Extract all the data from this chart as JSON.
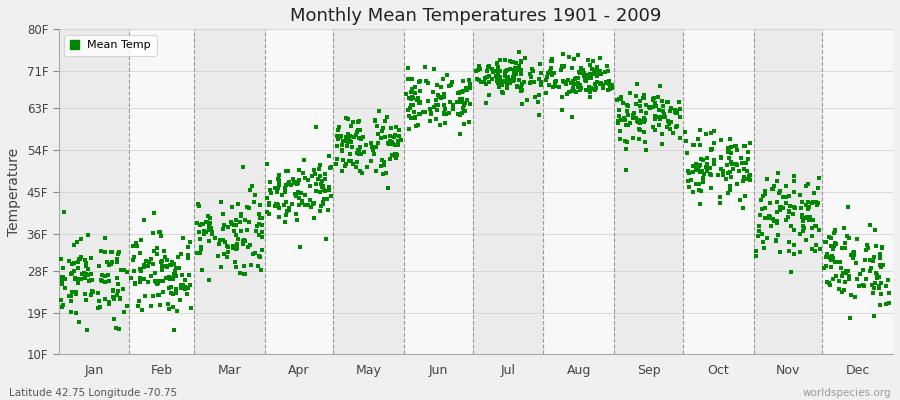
{
  "title": "Monthly Mean Temperatures 1901 - 2009",
  "ylabel": "Temperature",
  "xlabel_months": [
    "Jan",
    "Feb",
    "Mar",
    "Apr",
    "May",
    "Jun",
    "Jul",
    "Aug",
    "Sep",
    "Oct",
    "Nov",
    "Dec"
  ],
  "yticks": [
    10,
    19,
    28,
    36,
    45,
    54,
    63,
    71,
    80
  ],
  "ytick_labels": [
    "10F",
    "19F",
    "28F",
    "36F",
    "45F",
    "54F",
    "63F",
    "71F",
    "80F"
  ],
  "ylim": [
    10,
    80
  ],
  "dot_color": "#008800",
  "background_color": "#f0f0f0",
  "plot_bg": "#f5f5f5",
  "band_colors": [
    "#ebebeb",
    "#f8f8f8"
  ],
  "footer_left": "Latitude 42.75 Longitude -70.75",
  "footer_right": "worldspecies.org",
  "legend_label": "Mean Temp",
  "num_years": 109,
  "monthly_means": [
    26.0,
    27.5,
    36.0,
    45.5,
    55.0,
    64.5,
    70.0,
    69.0,
    61.0,
    50.5,
    40.0,
    29.0
  ],
  "monthly_stds": [
    4.5,
    4.5,
    4.5,
    3.5,
    3.5,
    3.0,
    2.5,
    2.5,
    3.0,
    3.5,
    4.0,
    4.5
  ],
  "seed": 12345,
  "days_per_month": [
    31,
    28.25,
    31,
    30,
    31,
    30,
    31,
    31,
    30,
    31,
    30,
    31
  ]
}
